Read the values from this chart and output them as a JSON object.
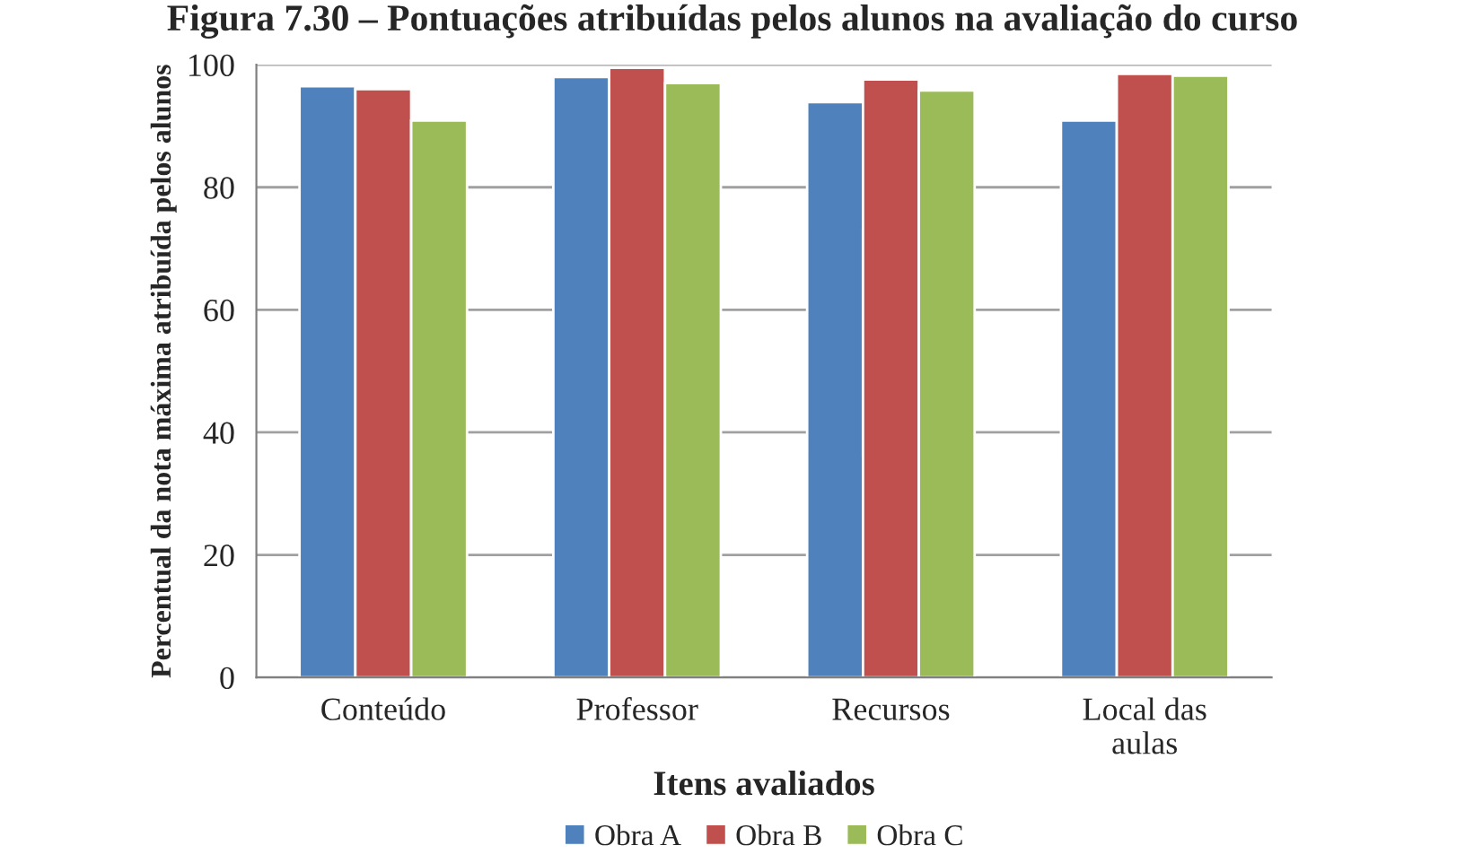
{
  "chart_data": {
    "type": "bar",
    "title": "Figura 7.30 – Pontuações atribuídas pelos alunos na avaliação do curso",
    "xlabel": "Itens avaliados",
    "ylabel": "Percentual da nota máxima atribuída pelos alunos",
    "categories": [
      "Conteúdo",
      "Professor",
      "Recursos",
      "Local das\naulas"
    ],
    "series": [
      {
        "name": "Obra A",
        "color": "#4f81bd",
        "values": [
          96.5,
          98.0,
          93.9,
          90.9
        ]
      },
      {
        "name": "Obra B",
        "color": "#c0504d",
        "values": [
          96.0,
          99.5,
          97.6,
          98.5
        ]
      },
      {
        "name": "Obra C",
        "color": "#9bbb59",
        "values": [
          90.9,
          97.0,
          95.8,
          98.2
        ]
      }
    ],
    "ylim": [
      0,
      100
    ],
    "yticks": [
      0,
      20,
      40,
      60,
      80,
      100
    ],
    "grid": "y",
    "legend": "bottom"
  }
}
